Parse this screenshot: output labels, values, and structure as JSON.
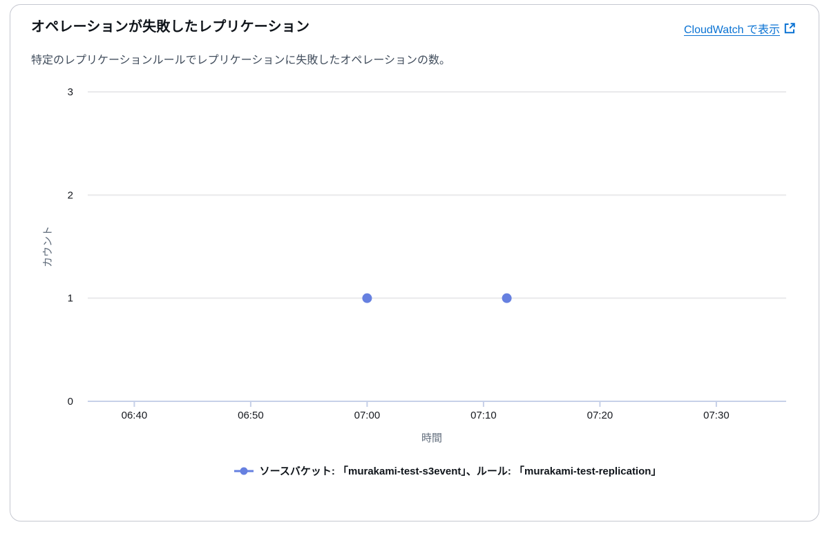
{
  "card": {
    "title": "オペレーションが失敗したレプリケーション",
    "description": "特定のレプリケーションルールでレプリケーションに失敗したオペレーションの数。",
    "link": {
      "label": "CloudWatch で表示"
    }
  },
  "colors": {
    "link": "#0972d3",
    "series": "#6680e0",
    "gridline": "#e9e9eb",
    "axis_line": "#c6d0e8",
    "tick_label": "#16191f",
    "axis_title": "#5f6b7a"
  },
  "chart_data": {
    "type": "scatter",
    "title": "オペレーションが失敗したレプリケーション",
    "xlabel": "時間",
    "ylabel": "カウント",
    "x_domain": [
      "06:36",
      "07:36"
    ],
    "x_ticks": [
      "06:40",
      "06:50",
      "07:00",
      "07:10",
      "07:20",
      "07:30"
    ],
    "ylim": [
      0,
      3
    ],
    "y_ticks": [
      0,
      1,
      2,
      3
    ],
    "grid": true,
    "legend_position": "bottom",
    "series": [
      {
        "name": "ソースバケット: 「murakami-test-s3event」、ルール: 「murakami-test-replication」",
        "color": "#6680e0",
        "marker": "circle",
        "points": [
          {
            "x": "07:00",
            "y": 1
          },
          {
            "x": "07:12",
            "y": 1
          }
        ]
      }
    ]
  }
}
